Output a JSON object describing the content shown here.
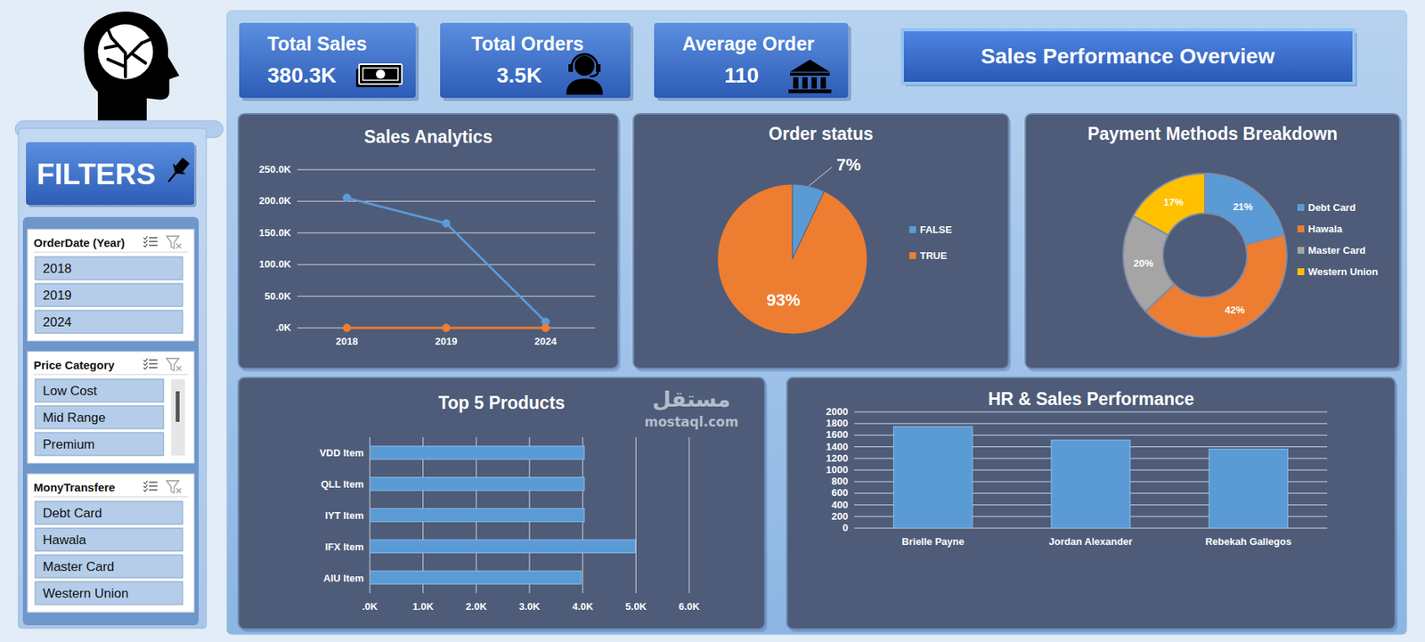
{
  "header": {
    "title": "Sales Performance Overview"
  },
  "kpis": [
    {
      "label": "Total Sales",
      "value": "380.3K"
    },
    {
      "label": "Total Orders",
      "value": "3.5K"
    },
    {
      "label": "Average Order",
      "value": "110"
    }
  ],
  "filters": {
    "title": "FILTERS",
    "slicers": [
      {
        "title": "OrderDate (Year)",
        "items": [
          "2018",
          "2019",
          "2024"
        ]
      },
      {
        "title": "Price Category",
        "items": [
          "Low Cost",
          "Mid Range",
          "Premium"
        ]
      },
      {
        "title": "MonyTransfere",
        "items": [
          "Debt Card",
          "Hawala",
          "Master Card",
          "Western Union"
        ]
      }
    ]
  },
  "watermark": [
    "مستقل",
    "mostaql.com"
  ],
  "chart_data": [
    {
      "type": "line",
      "title": "Sales Analytics",
      "categories": [
        "2018",
        "2019",
        "2024"
      ],
      "series": [
        {
          "color": "#5b9bd5",
          "values": [
            205.5,
            165.2,
            9.6
          ],
          "marker": "circle"
        },
        {
          "color": "#ed7d31",
          "values": [
            0,
            0,
            0
          ],
          "marker": "circle"
        }
      ],
      "ylim": [
        0,
        250
      ],
      "yticks": [
        {
          "value": 0,
          "label": ".0K"
        },
        {
          "value": 50,
          "label": "50.0K"
        },
        {
          "value": 100,
          "label": "100.0K"
        },
        {
          "value": 150,
          "label": "150.0K"
        },
        {
          "value": 200,
          "label": "200.0K"
        },
        {
          "value": 250,
          "label": "250.0K"
        }
      ],
      "grid": true
    },
    {
      "type": "pie",
      "title": "Order status",
      "categories": [
        "FALSE",
        "TRUE"
      ],
      "values": [
        7,
        93
      ],
      "value_labels": [
        "7%",
        "93%"
      ],
      "colors": [
        "#5b9bd5",
        "#ed7d31"
      ],
      "legend": "right",
      "data_labels": true
    },
    {
      "type": "donut",
      "title": "Payment Methods Breakdown",
      "categories": [
        "Debt Card",
        "Hawala",
        "Master Card",
        "Western Union"
      ],
      "values": [
        21,
        42,
        20,
        17
      ],
      "value_labels": [
        "21%",
        "42%",
        "20%",
        "17%"
      ],
      "colors": [
        "#5b9bd5",
        "#ed7d31",
        "#a5a5a5",
        "#ffc000"
      ],
      "legend": "right",
      "data_labels": true
    },
    {
      "type": "bar",
      "orientation": "horizontal",
      "title": "Top 5 Products",
      "categories": [
        "VDD Item",
        "QLL Item",
        "IYT Item",
        "IFX Item",
        "AIU Item"
      ],
      "values": [
        4.03,
        4.03,
        4.03,
        4.99,
        3.97
      ],
      "color": "#5b9bd5",
      "xlim": [
        0,
        6
      ],
      "xticks": [
        {
          "value": 0,
          "label": ".0K"
        },
        {
          "value": 1,
          "label": "1.0K"
        },
        {
          "value": 2,
          "label": "2.0K"
        },
        {
          "value": 3,
          "label": "3.0K"
        },
        {
          "value": 4,
          "label": "4.0K"
        },
        {
          "value": 5,
          "label": "5.0K"
        },
        {
          "value": 6,
          "label": "6.0K"
        }
      ],
      "grid": true
    },
    {
      "type": "bar",
      "title": "HR & Sales Performance",
      "categories": [
        "Brielle Payne",
        "Jordan Alexander",
        "Rebekah Gallegos"
      ],
      "values": [
        1750,
        1515,
        1360
      ],
      "color": "#5b9bd5",
      "ylim": [
        0,
        2000
      ],
      "yticks": [
        0,
        200,
        400,
        600,
        800,
        1000,
        1200,
        1400,
        1600,
        1800,
        2000
      ],
      "grid": true
    }
  ]
}
